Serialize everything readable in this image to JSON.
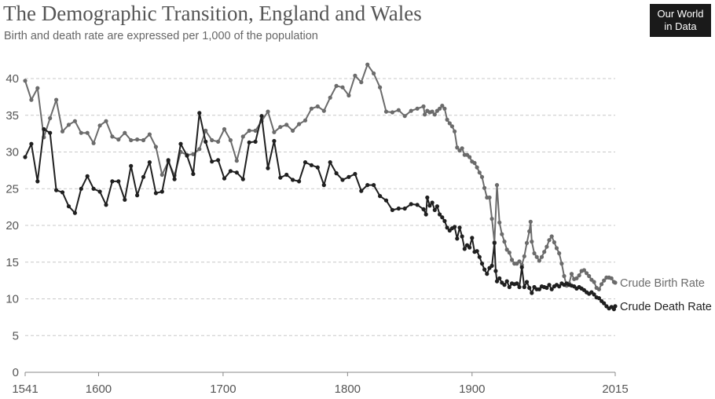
{
  "header": {
    "title": "The Demographic Transition, England and Wales",
    "subtitle": "Birth and death rate are expressed per 1,000 of the population"
  },
  "logo": {
    "line1": "Our World",
    "line2": "in Data"
  },
  "colors": {
    "birth": "#6b6b6b",
    "death": "#1f1f1f",
    "grid": "#c8c8c8",
    "axis": "#888888"
  },
  "chart_data": {
    "type": "line",
    "title": "The Demographic Transition, England and Wales",
    "subtitle": "Birth and death rate are expressed per 1,000 of the population",
    "xlim": [
      1541,
      2015
    ],
    "ylim": [
      0,
      40
    ],
    "x_ticks": [
      1541,
      1600,
      1700,
      1800,
      1900,
      2015
    ],
    "y_ticks": [
      0,
      5,
      10,
      15,
      20,
      25,
      30,
      35,
      40
    ],
    "grid": "horizontal dashed",
    "series": [
      {
        "name": "Crude Birth Rate",
        "points": [
          [
            1541,
            39.7
          ],
          [
            1546,
            37.1
          ],
          [
            1551,
            38.7
          ],
          [
            1556,
            32.0
          ],
          [
            1561,
            34.6
          ],
          [
            1566,
            37.1
          ],
          [
            1571,
            32.8
          ],
          [
            1576,
            33.7
          ],
          [
            1581,
            34.2
          ],
          [
            1586,
            32.6
          ],
          [
            1591,
            32.6
          ],
          [
            1596,
            31.2
          ],
          [
            1601,
            33.6
          ],
          [
            1606,
            34.2
          ],
          [
            1611,
            32.1
          ],
          [
            1616,
            31.7
          ],
          [
            1621,
            32.6
          ],
          [
            1626,
            31.6
          ],
          [
            1631,
            31.7
          ],
          [
            1636,
            31.6
          ],
          [
            1641,
            32.4
          ],
          [
            1646,
            30.7
          ],
          [
            1651,
            26.9
          ],
          [
            1656,
            28.7
          ],
          [
            1661,
            26.8
          ],
          [
            1666,
            30.0
          ],
          [
            1671,
            29.6
          ],
          [
            1676,
            29.7
          ],
          [
            1681,
            30.4
          ],
          [
            1686,
            32.9
          ],
          [
            1691,
            31.6
          ],
          [
            1696,
            31.4
          ],
          [
            1701,
            33.1
          ],
          [
            1706,
            31.6
          ],
          [
            1711,
            28.8
          ],
          [
            1716,
            32.1
          ],
          [
            1721,
            32.9
          ],
          [
            1726,
            32.9
          ],
          [
            1731,
            34.2
          ],
          [
            1736,
            35.5
          ],
          [
            1741,
            32.7
          ],
          [
            1746,
            33.4
          ],
          [
            1751,
            33.7
          ],
          [
            1756,
            32.9
          ],
          [
            1761,
            33.8
          ],
          [
            1766,
            34.3
          ],
          [
            1771,
            35.9
          ],
          [
            1776,
            36.2
          ],
          [
            1781,
            35.6
          ],
          [
            1786,
            37.4
          ],
          [
            1791,
            39.0
          ],
          [
            1796,
            38.8
          ],
          [
            1801,
            37.7
          ],
          [
            1806,
            40.4
          ],
          [
            1811,
            39.5
          ],
          [
            1816,
            41.9
          ],
          [
            1821,
            40.7
          ],
          [
            1826,
            38.8
          ],
          [
            1831,
            35.5
          ],
          [
            1836,
            35.4
          ],
          [
            1841,
            35.7
          ],
          [
            1846,
            34.9
          ],
          [
            1851,
            35.6
          ],
          [
            1856,
            35.9
          ],
          [
            1861,
            36.2
          ],
          [
            1862,
            35.1
          ],
          [
            1864,
            35.6
          ],
          [
            1866,
            35.4
          ],
          [
            1868,
            35.5
          ],
          [
            1870,
            35.1
          ],
          [
            1872,
            35.6
          ],
          [
            1874,
            35.9
          ],
          [
            1876,
            36.3
          ],
          [
            1878,
            35.9
          ],
          [
            1880,
            34.4
          ],
          [
            1882,
            33.9
          ],
          [
            1884,
            33.5
          ],
          [
            1886,
            32.8
          ],
          [
            1888,
            30.6
          ],
          [
            1890,
            30.2
          ],
          [
            1892,
            30.5
          ],
          [
            1894,
            29.6
          ],
          [
            1896,
            29.6
          ],
          [
            1898,
            29.3
          ],
          [
            1900,
            28.7
          ],
          [
            1902,
            28.5
          ],
          [
            1904,
            27.9
          ],
          [
            1906,
            27.2
          ],
          [
            1908,
            26.6
          ],
          [
            1910,
            25.1
          ],
          [
            1912,
            23.8
          ],
          [
            1914,
            23.8
          ],
          [
            1916,
            20.9
          ],
          [
            1918,
            17.7
          ],
          [
            1920,
            25.5
          ],
          [
            1922,
            20.4
          ],
          [
            1924,
            18.8
          ],
          [
            1926,
            17.8
          ],
          [
            1928,
            16.7
          ],
          [
            1930,
            16.3
          ],
          [
            1932,
            15.3
          ],
          [
            1934,
            14.8
          ],
          [
            1936,
            14.8
          ],
          [
            1938,
            15.1
          ],
          [
            1940,
            14.6
          ],
          [
            1942,
            15.8
          ],
          [
            1944,
            17.6
          ],
          [
            1946,
            19.2
          ],
          [
            1947,
            20.5
          ],
          [
            1948,
            17.8
          ],
          [
            1950,
            16.2
          ],
          [
            1952,
            15.7
          ],
          [
            1954,
            15.2
          ],
          [
            1956,
            15.7
          ],
          [
            1958,
            16.4
          ],
          [
            1960,
            17.1
          ],
          [
            1962,
            18.0
          ],
          [
            1964,
            18.5
          ],
          [
            1966,
            17.7
          ],
          [
            1968,
            16.9
          ],
          [
            1970,
            16.2
          ],
          [
            1972,
            14.8
          ],
          [
            1974,
            13.1
          ],
          [
            1976,
            11.8
          ],
          [
            1978,
            12.1
          ],
          [
            1980,
            13.4
          ],
          [
            1982,
            12.7
          ],
          [
            1984,
            12.8
          ],
          [
            1986,
            13.2
          ],
          [
            1988,
            13.8
          ],
          [
            1990,
            13.9
          ],
          [
            1992,
            13.5
          ],
          [
            1994,
            13.1
          ],
          [
            1996,
            12.6
          ],
          [
            1998,
            12.3
          ],
          [
            2000,
            11.5
          ],
          [
            2002,
            11.3
          ],
          [
            2004,
            12.0
          ],
          [
            2006,
            12.5
          ],
          [
            2008,
            12.9
          ],
          [
            2010,
            12.9
          ],
          [
            2012,
            12.8
          ],
          [
            2014,
            12.3
          ],
          [
            2015,
            12.2
          ]
        ]
      },
      {
        "name": "Crude Death Rate",
        "points": [
          [
            1541,
            29.3
          ],
          [
            1546,
            31.1
          ],
          [
            1551,
            26.0
          ],
          [
            1556,
            33.1
          ],
          [
            1561,
            32.6
          ],
          [
            1566,
            24.8
          ],
          [
            1571,
            24.5
          ],
          [
            1576,
            22.6
          ],
          [
            1581,
            21.7
          ],
          [
            1586,
            25.0
          ],
          [
            1591,
            26.7
          ],
          [
            1596,
            25.0
          ],
          [
            1601,
            24.6
          ],
          [
            1606,
            22.8
          ],
          [
            1611,
            26.0
          ],
          [
            1616,
            26.0
          ],
          [
            1621,
            23.5
          ],
          [
            1626,
            28.1
          ],
          [
            1631,
            24.1
          ],
          [
            1636,
            26.6
          ],
          [
            1641,
            28.6
          ],
          [
            1646,
            24.4
          ],
          [
            1651,
            24.6
          ],
          [
            1656,
            28.9
          ],
          [
            1661,
            26.3
          ],
          [
            1666,
            31.1
          ],
          [
            1671,
            29.5
          ],
          [
            1676,
            27.0
          ],
          [
            1681,
            35.3
          ],
          [
            1686,
            31.4
          ],
          [
            1691,
            28.7
          ],
          [
            1696,
            28.9
          ],
          [
            1701,
            26.4
          ],
          [
            1706,
            27.4
          ],
          [
            1711,
            27.2
          ],
          [
            1716,
            26.3
          ],
          [
            1721,
            31.3
          ],
          [
            1726,
            31.4
          ],
          [
            1731,
            34.9
          ],
          [
            1736,
            27.8
          ],
          [
            1741,
            31.5
          ],
          [
            1746,
            26.5
          ],
          [
            1751,
            26.9
          ],
          [
            1756,
            26.2
          ],
          [
            1761,
            26.0
          ],
          [
            1766,
            28.6
          ],
          [
            1771,
            28.2
          ],
          [
            1776,
            27.9
          ],
          [
            1781,
            25.5
          ],
          [
            1786,
            28.6
          ],
          [
            1791,
            27.1
          ],
          [
            1796,
            26.2
          ],
          [
            1801,
            26.6
          ],
          [
            1806,
            27.0
          ],
          [
            1811,
            24.7
          ],
          [
            1816,
            25.5
          ],
          [
            1821,
            25.5
          ],
          [
            1826,
            24.0
          ],
          [
            1831,
            23.4
          ],
          [
            1836,
            22.1
          ],
          [
            1841,
            22.3
          ],
          [
            1846,
            22.3
          ],
          [
            1851,
            22.9
          ],
          [
            1856,
            22.8
          ],
          [
            1861,
            22.2
          ],
          [
            1863,
            21.5
          ],
          [
            1864,
            23.8
          ],
          [
            1866,
            22.7
          ],
          [
            1868,
            23.1
          ],
          [
            1870,
            22.1
          ],
          [
            1872,
            22.6
          ],
          [
            1874,
            21.5
          ],
          [
            1876,
            21.1
          ],
          [
            1878,
            20.6
          ],
          [
            1880,
            19.7
          ],
          [
            1882,
            19.3
          ],
          [
            1884,
            19.6
          ],
          [
            1886,
            19.8
          ],
          [
            1888,
            18.2
          ],
          [
            1890,
            19.7
          ],
          [
            1892,
            18.5
          ],
          [
            1894,
            16.8
          ],
          [
            1896,
            17.3
          ],
          [
            1898,
            17.0
          ],
          [
            1900,
            18.3
          ],
          [
            1902,
            16.4
          ],
          [
            1904,
            16.5
          ],
          [
            1906,
            15.7
          ],
          [
            1908,
            14.8
          ],
          [
            1910,
            14.0
          ],
          [
            1912,
            13.4
          ],
          [
            1914,
            14.2
          ],
          [
            1916,
            14.5
          ],
          [
            1918,
            17.6
          ],
          [
            1919,
            13.8
          ],
          [
            1920,
            12.4
          ],
          [
            1922,
            12.8
          ],
          [
            1924,
            12.2
          ],
          [
            1926,
            11.9
          ],
          [
            1928,
            12.4
          ],
          [
            1930,
            11.6
          ],
          [
            1932,
            12.1
          ],
          [
            1934,
            12.0
          ],
          [
            1936,
            12.1
          ],
          [
            1938,
            11.6
          ],
          [
            1940,
            14.3
          ],
          [
            1942,
            11.6
          ],
          [
            1944,
            12.3
          ],
          [
            1946,
            11.5
          ],
          [
            1948,
            10.8
          ],
          [
            1950,
            11.6
          ],
          [
            1952,
            11.3
          ],
          [
            1954,
            11.3
          ],
          [
            1956,
            11.7
          ],
          [
            1958,
            11.6
          ],
          [
            1960,
            11.5
          ],
          [
            1962,
            11.9
          ],
          [
            1964,
            11.3
          ],
          [
            1966,
            11.7
          ],
          [
            1968,
            11.9
          ],
          [
            1970,
            11.7
          ],
          [
            1972,
            12.1
          ],
          [
            1974,
            11.9
          ],
          [
            1976,
            12.1
          ],
          [
            1978,
            11.9
          ],
          [
            1980,
            11.8
          ],
          [
            1982,
            11.7
          ],
          [
            1984,
            11.4
          ],
          [
            1986,
            11.6
          ],
          [
            1988,
            11.4
          ],
          [
            1990,
            11.2
          ],
          [
            1992,
            10.9
          ],
          [
            1994,
            10.7
          ],
          [
            1996,
            10.9
          ],
          [
            1998,
            10.6
          ],
          [
            2000,
            10.2
          ],
          [
            2002,
            10.1
          ],
          [
            2004,
            9.7
          ],
          [
            2006,
            9.4
          ],
          [
            2008,
            9.0
          ],
          [
            2010,
            8.7
          ],
          [
            2012,
            8.9
          ],
          [
            2014,
            8.6
          ],
          [
            2015,
            9.0
          ]
        ]
      }
    ]
  }
}
